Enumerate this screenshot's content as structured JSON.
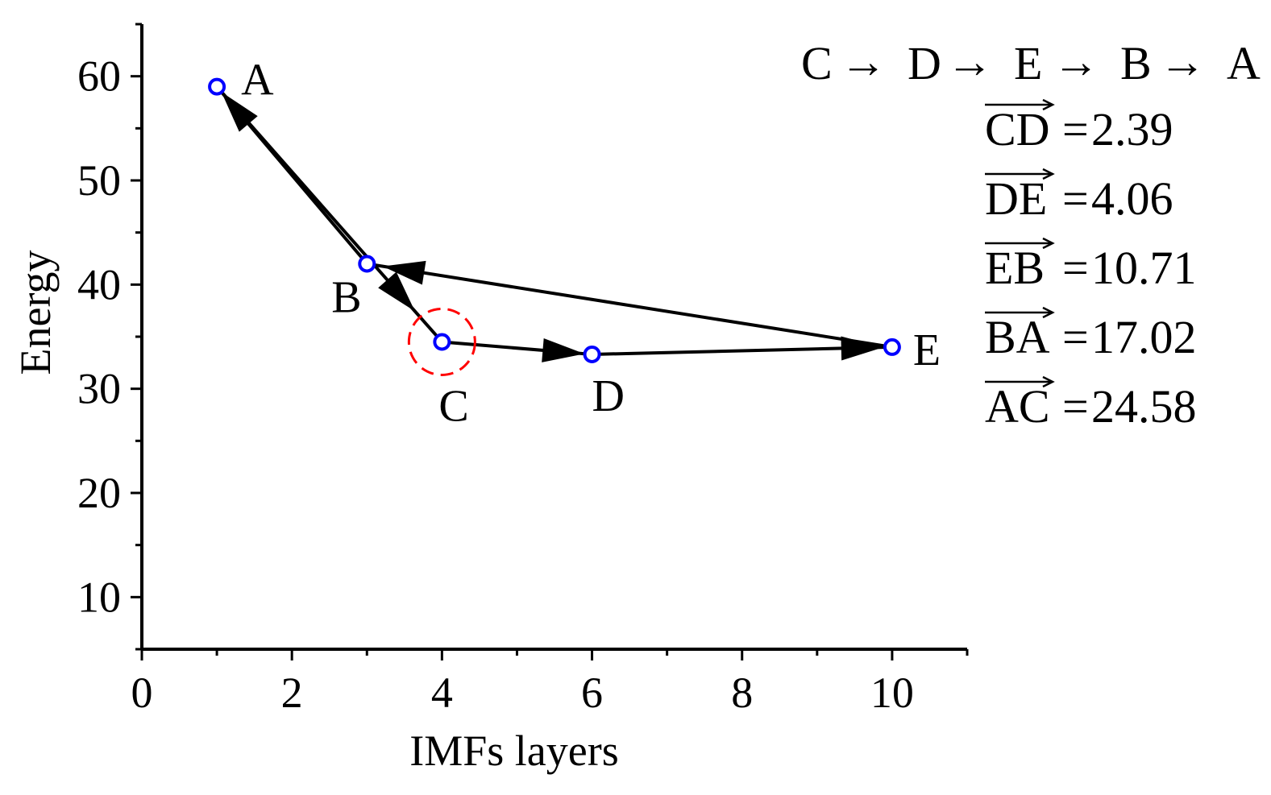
{
  "chart_data": {
    "type": "scatter",
    "title": "",
    "xlabel": "IMFs layers",
    "ylabel": "Energy",
    "xlim": [
      0,
      11
    ],
    "ylim": [
      5,
      65
    ],
    "x_ticks": [
      0,
      2,
      4,
      6,
      8,
      10
    ],
    "x_tick_labels": [
      "0",
      "2",
      "4",
      "6",
      "8",
      "10"
    ],
    "y_ticks": [
      10,
      20,
      30,
      40,
      50,
      60
    ],
    "y_tick_labels": [
      "10",
      "20",
      "30",
      "40",
      "50",
      "60"
    ],
    "grid": false,
    "points": [
      {
        "label": "A",
        "x": 1,
        "y": 59
      },
      {
        "label": "B",
        "x": 3,
        "y": 42
      },
      {
        "label": "C",
        "x": 4,
        "y": 34.5
      },
      {
        "label": "D",
        "x": 6,
        "y": 33.3
      },
      {
        "label": "E",
        "x": 10,
        "y": 34
      }
    ],
    "path_order": [
      "C",
      "D",
      "E",
      "B",
      "A",
      "C"
    ],
    "highlighted_point": "C",
    "point_color": "#0000ff",
    "highlight_color": "#ff0000",
    "arrow_color": "#000000",
    "annotations": {
      "sequence": [
        "C",
        "D",
        "E",
        "B",
        "A"
      ],
      "sequence_arrow": "→",
      "distances": [
        {
          "label": "CD",
          "value": "2.39"
        },
        {
          "label": "DE",
          "value": "4.06"
        },
        {
          "label": "EB",
          "value": "10.71"
        },
        {
          "label": "BA",
          "value": "17.02"
        },
        {
          "label": "AC",
          "value": "24.58"
        }
      ]
    }
  }
}
